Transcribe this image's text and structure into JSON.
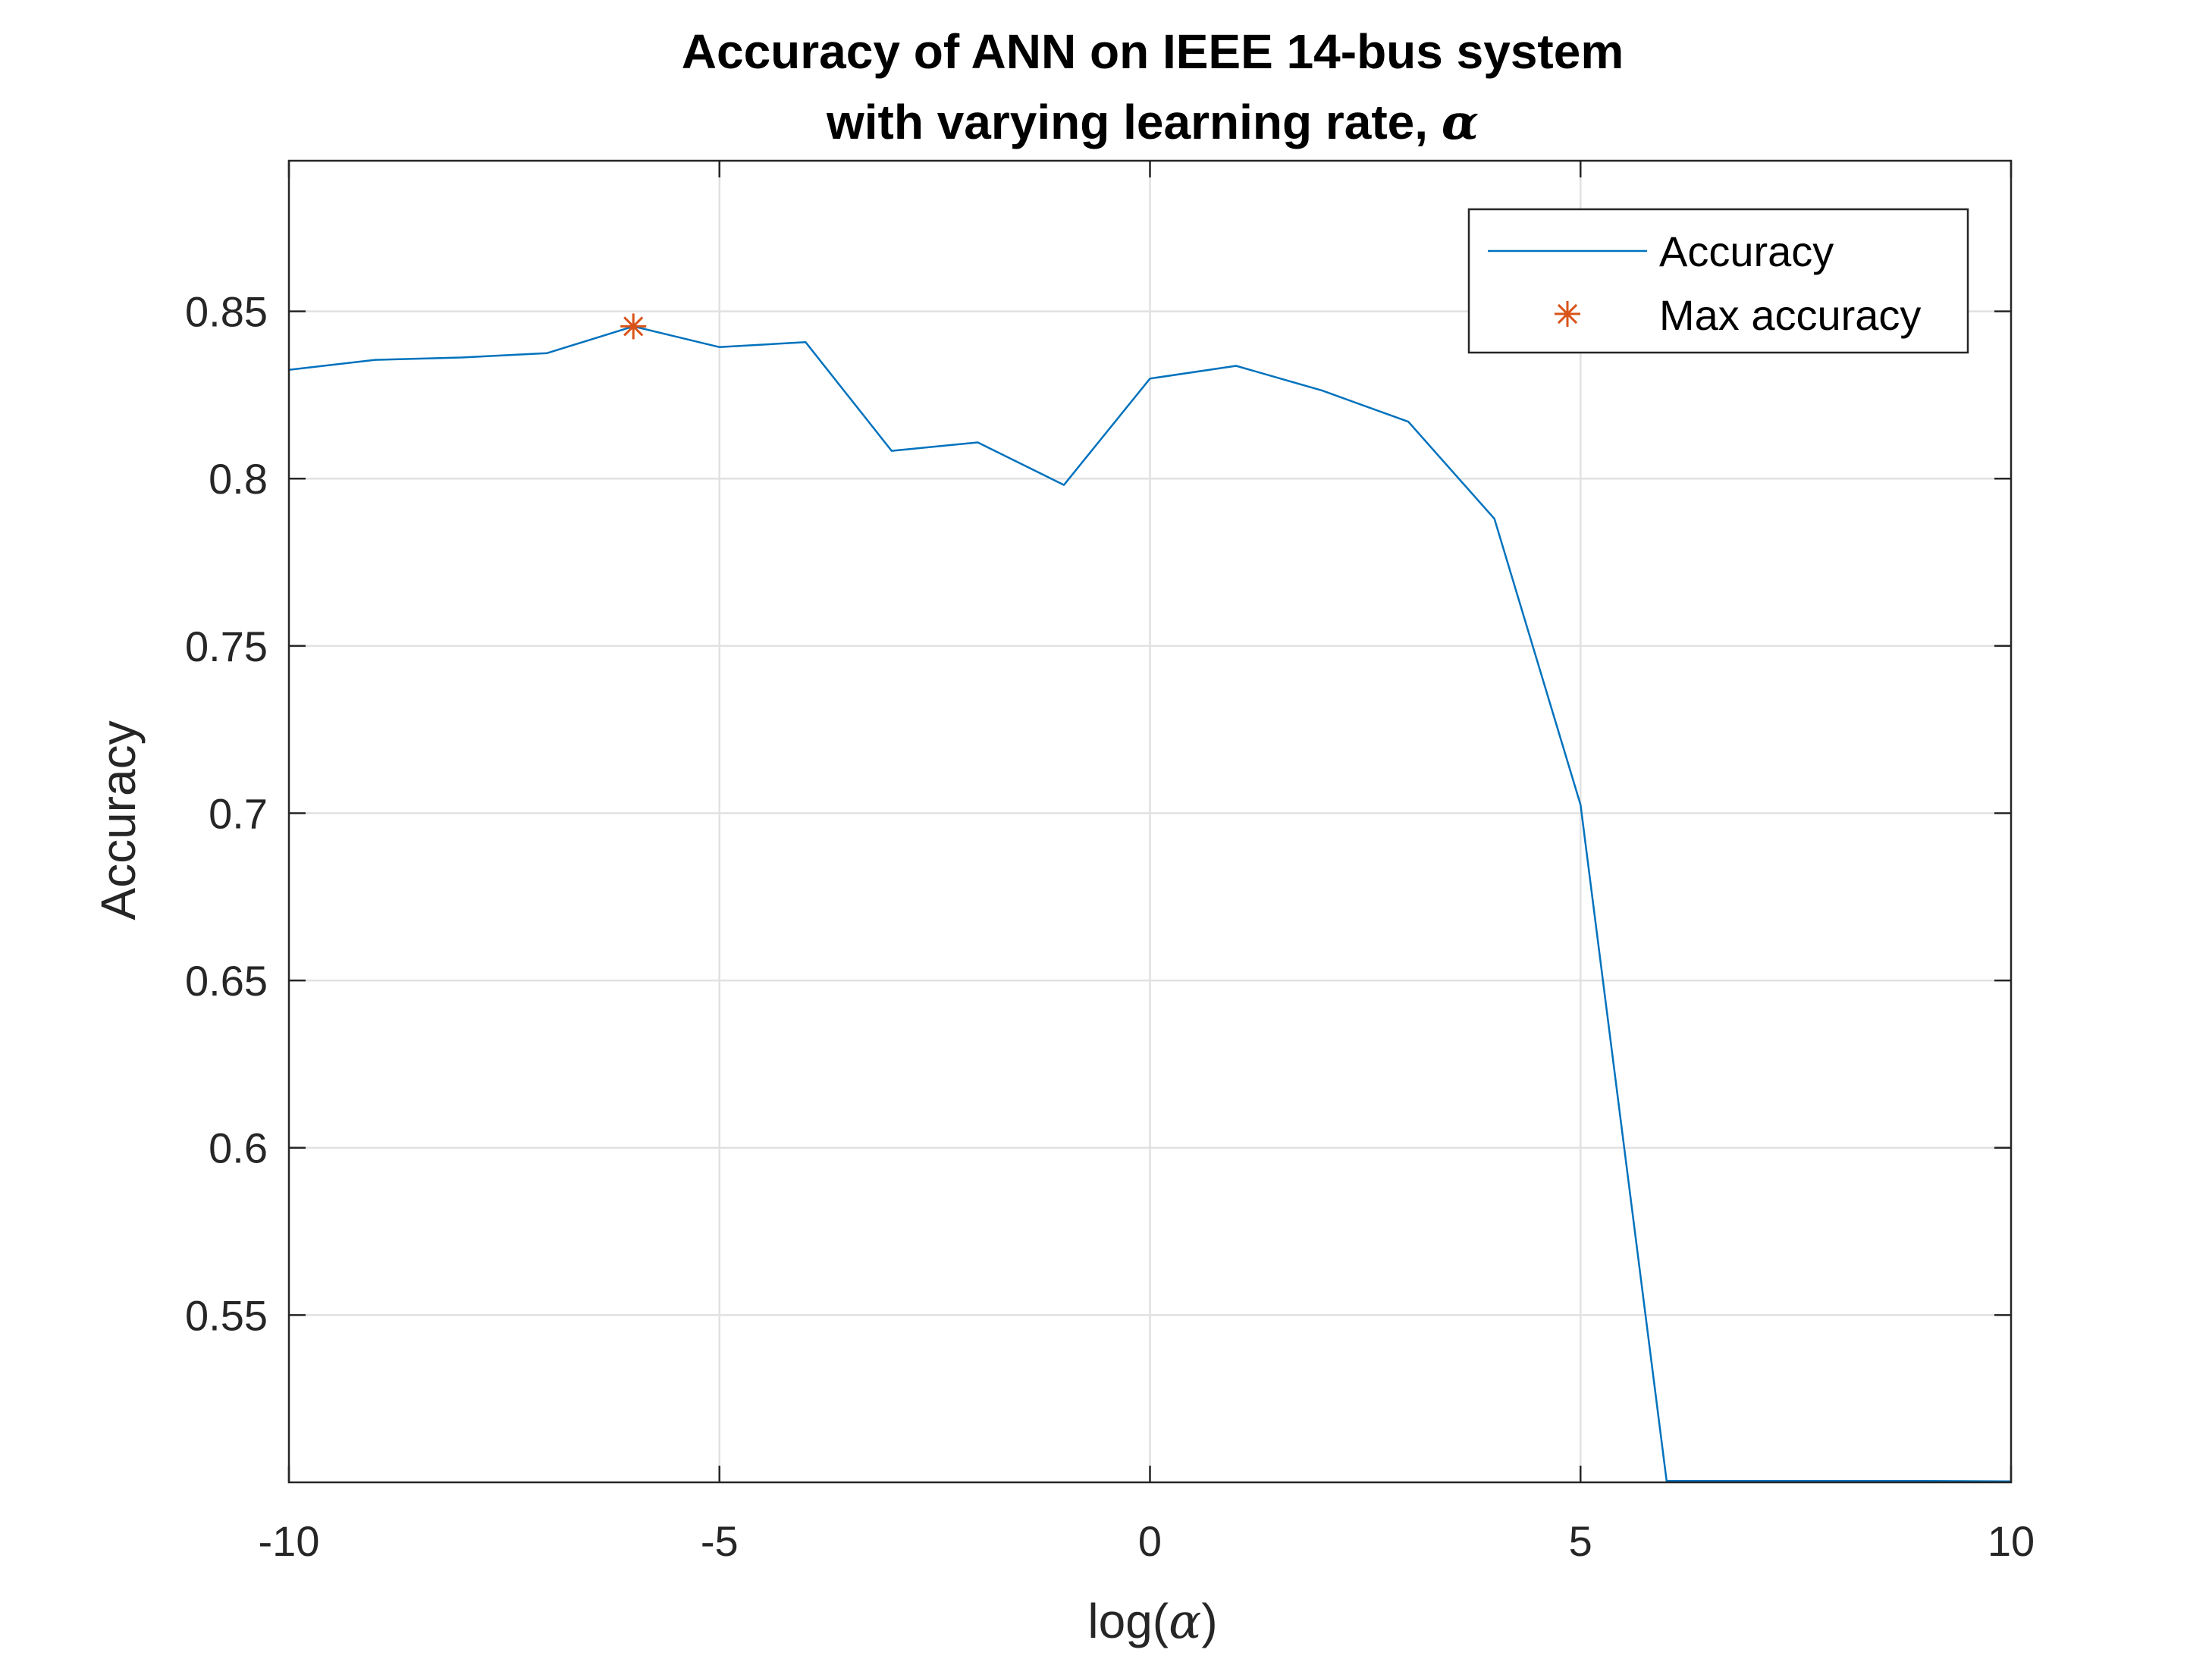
{
  "chart_data": {
    "type": "line",
    "title": [
      "Accuracy of ANN on IEEE 14-bus system",
      "with varying learning rate, "
    ],
    "title_symbol": "α",
    "xlabel_prefix": "log(",
    "xlabel_symbol": "α",
    "xlabel_suffix": ")",
    "ylabel": "Accuracy",
    "xlim": [
      -10,
      10
    ],
    "ylim": [
      0.5,
      0.895
    ],
    "xticks": [
      -10,
      -5,
      0,
      5,
      10
    ],
    "xtick_labels": [
      "-10",
      "-5",
      "0",
      "5",
      "10"
    ],
    "yticks": [
      0.55,
      0.6,
      0.65,
      0.7,
      0.75,
      0.8,
      0.85
    ],
    "ytick_labels": [
      "0.55",
      "0.6",
      "0.65",
      "0.7",
      "0.75",
      "0.8",
      "0.85"
    ],
    "grid": true,
    "legend_position": "top-right",
    "series": [
      {
        "name": "Accuracy",
        "color": "#0072BD",
        "x": [
          -10,
          -9,
          -8,
          -7,
          -6,
          -5,
          -4,
          -3,
          -2,
          -1,
          0,
          1,
          2,
          3,
          4,
          5,
          6,
          7,
          8,
          9,
          10
        ],
        "y": [
          0.8325,
          0.8355,
          0.8362,
          0.8375,
          0.8455,
          0.8393,
          0.8408,
          0.8083,
          0.8108,
          0.7981,
          0.8299,
          0.8337,
          0.8263,
          0.817,
          0.788,
          0.7025,
          0.5004,
          0.5004,
          0.5004,
          0.5004,
          0.5003
        ]
      }
    ],
    "markers": [
      {
        "name": "Max accuracy",
        "color": "#D95319",
        "shape": "asterisk",
        "x": -6,
        "y": 0.8455
      }
    ]
  }
}
